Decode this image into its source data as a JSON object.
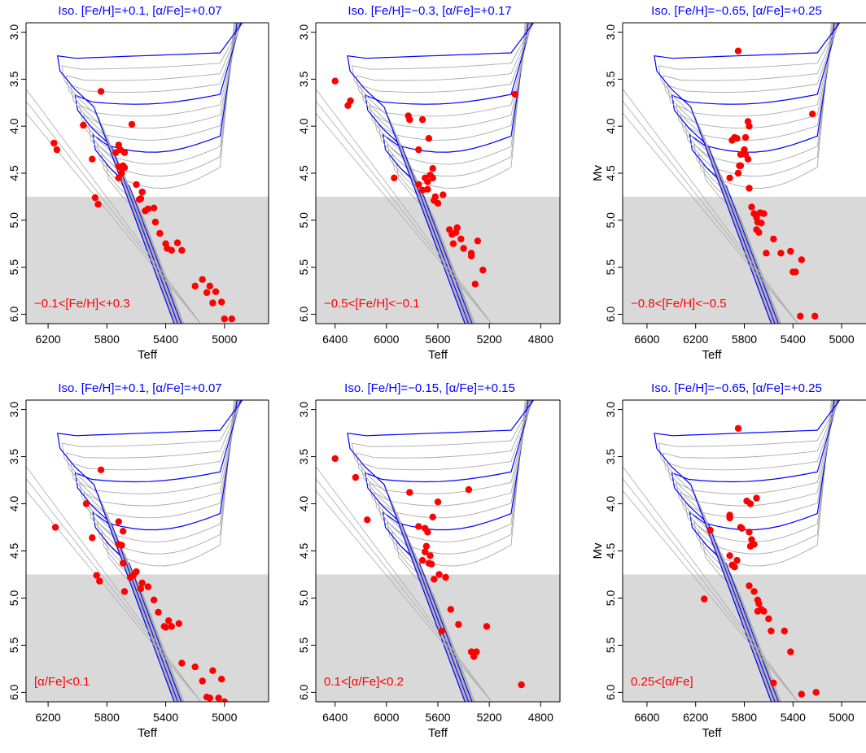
{
  "chart_data": [
    {
      "type": "scatter",
      "title": "Iso. [Fe/H]=+0.1,  [α/Fe]=+0.07",
      "xlabel": "Teff",
      "ylabel": "",
      "xlim": [
        6350,
        4700
      ],
      "ylim": [
        6.1,
        2.9
      ],
      "xticks": [
        6200,
        5800,
        5400,
        5000
      ],
      "yticks": [
        3.0,
        3.5,
        4.0,
        4.5,
        5.0,
        5.5,
        6.0
      ],
      "shaded_below_mv": 4.75,
      "annotation": "−0.1<[Fe/H]<+0.3",
      "isochrone_colors": [
        "#aaaaaa",
        "#aaaaaa",
        "#aaaaaa",
        "#0000ff",
        "#aaaaaa",
        "#aaaaaa",
        "#aaaaaa",
        "#0000ff",
        "#aaaaaa",
        "#aaaaaa",
        "#aaaaaa",
        "#0000ff"
      ],
      "points": {
        "teff": [
          6160,
          6140,
          5900,
          5960,
          5880,
          5860,
          5840,
          5720,
          5710,
          5740,
          5720,
          5690,
          5700,
          5720,
          5700,
          5680,
          5680,
          5630,
          5600,
          5560,
          5580,
          5570,
          5540,
          5520,
          5480,
          5470,
          5440,
          5400,
          5390,
          5360,
          5320,
          5290,
          5200,
          5150,
          5120,
          5100,
          5080,
          5060,
          5020,
          5000,
          4950
        ],
        "mv": [
          4.18,
          4.25,
          4.35,
          3.99,
          4.76,
          4.83,
          3.63,
          4.2,
          4.25,
          4.28,
          4.43,
          4.42,
          4.5,
          4.55,
          4.44,
          4.28,
          4.44,
          3.98,
          4.62,
          4.7,
          4.78,
          4.77,
          4.9,
          4.88,
          4.87,
          5.02,
          5.14,
          5.25,
          5.3,
          5.32,
          5.24,
          5.32,
          5.7,
          5.63,
          5.77,
          5.7,
          5.88,
          5.76,
          5.87,
          6.05,
          6.05
        ]
      }
    },
    {
      "type": "scatter",
      "title": "Iso. [Fe/H]=−0.3,  [α/Fe]=+0.17",
      "xlabel": "Teff",
      "ylabel": "",
      "xlim": [
        6550,
        4650
      ],
      "ylim": [
        6.1,
        2.9
      ],
      "xticks": [
        6400,
        6000,
        5600,
        5200,
        4800
      ],
      "yticks": [
        3.0,
        3.5,
        4.0,
        4.5,
        5.0,
        5.5,
        6.0
      ],
      "shaded_below_mv": 4.75,
      "annotation": "−0.5<[Fe/H]<−0.1",
      "isochrone_colors": [
        "#aaaaaa",
        "#aaaaaa",
        "#aaaaaa",
        "#0000ff",
        "#aaaaaa",
        "#aaaaaa",
        "#aaaaaa",
        "#0000ff",
        "#aaaaaa",
        "#aaaaaa",
        "#aaaaaa",
        "#0000ff"
      ],
      "points": {
        "teff": [
          6400,
          6300,
          6280,
          5940,
          5830,
          5820,
          5720,
          5750,
          5670,
          5640,
          5660,
          5640,
          5680,
          5700,
          5750,
          5720,
          5680,
          5630,
          5600,
          5620,
          5560,
          5510,
          5490,
          5480,
          5460,
          5450,
          5420,
          5400,
          5340,
          5340,
          5250,
          5310,
          5290,
          5000
        ],
        "mv": [
          3.52,
          3.78,
          3.73,
          4.55,
          3.89,
          3.93,
          3.93,
          4.25,
          4.13,
          4.45,
          4.52,
          4.55,
          4.59,
          4.55,
          4.62,
          4.68,
          4.67,
          4.79,
          4.82,
          4.75,
          4.73,
          5.1,
          5.15,
          5.25,
          5.13,
          5.08,
          5.2,
          5.3,
          5.35,
          5.38,
          5.53,
          5.68,
          5.22,
          3.66
        ],
        "note": "approximate"
      }
    },
    {
      "type": "scatter",
      "title": "Iso. [Fe/H]=−0.65,  [α/Fe]=+0.25",
      "xlabel": "Teff",
      "ylabel": "Mv",
      "xlim": [
        6800,
        4800
      ],
      "ylim": [
        6.1,
        2.9
      ],
      "xticks": [
        6600,
        6200,
        5800,
        5400,
        5000
      ],
      "yticks": [
        3.0,
        3.5,
        4.0,
        4.5,
        5.0,
        5.5,
        6.0
      ],
      "shaded_below_mv": 4.75,
      "annotation": "−0.8<[Fe/H]<−0.5",
      "isochrone_colors": [
        "#aaaaaa",
        "#aaaaaa",
        "#aaaaaa",
        "#0000ff",
        "#aaaaaa",
        "#aaaaaa",
        "#aaaaaa",
        "#0000ff",
        "#aaaaaa",
        "#aaaaaa",
        "#aaaaaa",
        "#0000ff"
      ],
      "points": {
        "teff": [
          5850,
          5770,
          5760,
          5790,
          5800,
          5830,
          5860,
          5880,
          5900,
          5920,
          5850,
          5840,
          5830,
          5790,
          5770,
          5760,
          5740,
          5720,
          5700,
          5690,
          5700,
          5680,
          5670,
          5660,
          5640,
          5620,
          5560,
          5500,
          5420,
          5400,
          5380,
          5330,
          5340,
          5240,
          5220
        ],
        "mv": [
          3.2,
          3.95,
          4.0,
          4.12,
          4.25,
          4.3,
          4.13,
          4.12,
          4.15,
          4.55,
          4.5,
          4.42,
          4.42,
          4.3,
          4.35,
          4.66,
          4.86,
          4.93,
          4.97,
          5.02,
          5.1,
          5.13,
          4.92,
          5.03,
          4.93,
          5.35,
          5.2,
          5.35,
          5.33,
          5.55,
          5.55,
          5.42,
          6.02,
          3.87,
          6.02
        ],
        "note": "approximate"
      }
    },
    {
      "type": "scatter",
      "title": "Iso. [Fe/H]=+0.1,  [α/Fe]=+0.07",
      "xlabel": "Teff",
      "ylabel": "",
      "xlim": [
        6350,
        4700
      ],
      "ylim": [
        6.1,
        2.9
      ],
      "xticks": [
        6200,
        5800,
        5400,
        5000
      ],
      "yticks": [
        3.0,
        3.5,
        4.0,
        4.5,
        5.0,
        5.5,
        6.0
      ],
      "shaded_below_mv": 4.75,
      "annotation": "[α/Fe]<0.1",
      "isochrone_colors": [
        "#aaaaaa",
        "#aaaaaa",
        "#aaaaaa",
        "#0000ff",
        "#aaaaaa",
        "#aaaaaa",
        "#aaaaaa",
        "#0000ff",
        "#aaaaaa",
        "#aaaaaa",
        "#aaaaaa",
        "#0000ff"
      ],
      "points": {
        "teff": [
          6150,
          5940,
          5900,
          5870,
          5850,
          5840,
          5720,
          5690,
          5720,
          5700,
          5680,
          5690,
          5640,
          5620,
          5600,
          5570,
          5560,
          5520,
          5480,
          5450,
          5410,
          5400,
          5380,
          5360,
          5310,
          5290,
          5200,
          5150,
          5120,
          5100,
          5080,
          5040,
          5020,
          5000
        ],
        "mv": [
          4.25,
          4.0,
          4.36,
          4.76,
          4.82,
          3.64,
          4.19,
          4.29,
          4.43,
          4.44,
          4.93,
          4.63,
          4.78,
          4.76,
          4.72,
          4.9,
          4.84,
          4.88,
          5.02,
          5.15,
          5.3,
          5.31,
          5.24,
          5.3,
          5.27,
          5.69,
          5.73,
          5.88,
          6.05,
          6.06,
          5.77,
          6.06,
          5.86,
          6.1
        ],
        "note": "approximate"
      }
    },
    {
      "type": "scatter",
      "title": "Iso. [Fe/H]=−0.15,  [α/Fe]=+0.15",
      "xlabel": "Teff",
      "ylabel": "",
      "xlim": [
        6550,
        4650
      ],
      "ylim": [
        6.1,
        2.9
      ],
      "xticks": [
        6400,
        6000,
        5600,
        5200,
        4800
      ],
      "yticks": [
        3.0,
        3.5,
        4.0,
        4.5,
        5.0,
        5.5,
        6.0
      ],
      "shaded_below_mv": 4.75,
      "annotation": "0.1<[α/Fe]<0.2",
      "isochrone_colors": [
        "#aaaaaa",
        "#aaaaaa",
        "#aaaaaa",
        "#0000ff",
        "#aaaaaa",
        "#aaaaaa",
        "#aaaaaa",
        "#0000ff",
        "#aaaaaa",
        "#aaaaaa",
        "#aaaaaa",
        "#0000ff"
      ],
      "points": {
        "teff": [
          6400,
          6240,
          6150,
          5820,
          5750,
          5700,
          5640,
          5600,
          5680,
          5690,
          5700,
          5720,
          5660,
          5650,
          5670,
          5630,
          5590,
          5540,
          5500,
          5570,
          5440,
          5360,
          5340,
          5320,
          5300,
          5220,
          4950
        ],
        "mv": [
          3.52,
          3.72,
          4.17,
          3.88,
          4.24,
          4.26,
          4.14,
          3.98,
          4.3,
          4.45,
          4.51,
          4.6,
          4.55,
          4.64,
          4.63,
          4.8,
          4.75,
          4.78,
          5.12,
          5.35,
          5.28,
          3.85,
          5.57,
          5.62,
          5.57,
          5.3,
          5.92
        ],
        "note": "approximate"
      }
    },
    {
      "type": "scatter",
      "title": "Iso. [Fe/H]=−0.65,  [α/Fe]=+0.25",
      "xlabel": "Teff",
      "ylabel": "Mv",
      "xlim": [
        6800,
        4800
      ],
      "ylim": [
        6.1,
        2.9
      ],
      "xticks": [
        6600,
        6200,
        5800,
        5400,
        5000
      ],
      "yticks": [
        3.0,
        3.5,
        4.0,
        4.5,
        5.0,
        5.5,
        6.0
      ],
      "shaded_below_mv": 4.75,
      "annotation": "0.25<[α/Fe]",
      "isochrone_colors": [
        "#aaaaaa",
        "#aaaaaa",
        "#aaaaaa",
        "#0000ff",
        "#aaaaaa",
        "#aaaaaa",
        "#aaaaaa",
        "#0000ff",
        "#aaaaaa",
        "#aaaaaa",
        "#aaaaaa",
        "#0000ff"
      ],
      "points": {
        "teff": [
          5850,
          5780,
          5750,
          5700,
          5920,
          5920,
          5830,
          5820,
          5760,
          5740,
          5750,
          5720,
          5920,
          5900,
          5880,
          5860,
          5760,
          5720,
          5690,
          5680,
          5660,
          5690,
          5640,
          5600,
          5580,
          5470,
          5420,
          5330,
          5210,
          5560,
          6130,
          6080
        ],
        "mv": [
          3.2,
          3.97,
          4.0,
          3.94,
          4.12,
          4.15,
          4.25,
          4.26,
          4.3,
          4.38,
          4.45,
          4.43,
          4.55,
          4.65,
          4.67,
          4.6,
          4.87,
          4.93,
          5.02,
          5.06,
          5.12,
          5.14,
          5.14,
          5.22,
          5.35,
          5.35,
          5.57,
          6.02,
          6.0,
          5.9,
          5.01,
          4.28
        ],
        "note": "approximate"
      }
    }
  ]
}
